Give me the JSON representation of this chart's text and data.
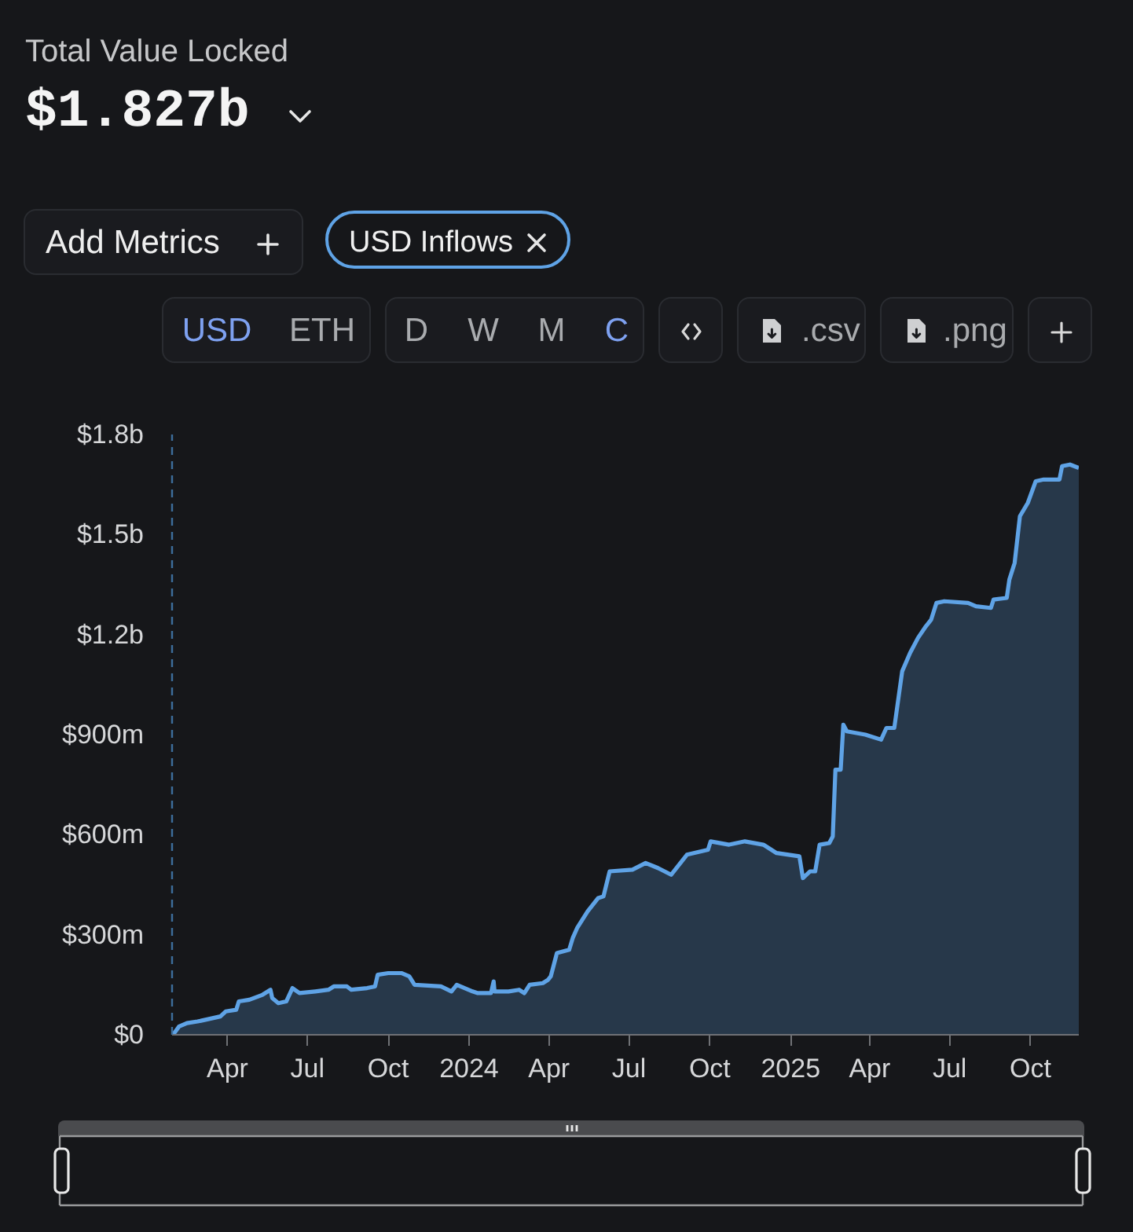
{
  "chart_data": {
    "type": "area",
    "title": "Total Value Locked",
    "subtitle": "$1.827b",
    "annotations": [
      "Add Metrics",
      "USD",
      "ETH",
      "D",
      "W",
      "M",
      "C",
      ".csv",
      ".png"
    ],
    "x": [
      "2023-01-29",
      "2023-02-05",
      "2023-02-14",
      "2023-02-26",
      "2023-03-07",
      "2023-03-24",
      "2023-03-30",
      "2023-04-11",
      "2023-04-14",
      "2023-04-26",
      "2023-05-11",
      "2023-05-20",
      "2023-05-22",
      "2023-05-29",
      "2023-06-07",
      "2023-06-14",
      "2023-06-22",
      "2023-07-10",
      "2023-07-25",
      "2023-07-31",
      "2023-08-15",
      "2023-08-20",
      "2023-09-07",
      "2023-09-16",
      "2023-09-19",
      "2023-10-01",
      "2023-10-16",
      "2023-10-25",
      "2023-10-31",
      "2023-11-30",
      "2023-12-12",
      "2023-12-18",
      "2023-12-27",
      "2024-01-05",
      "2024-01-11",
      "2024-01-26",
      "2024-01-29",
      "2024-01-30",
      "2024-02-15",
      "2024-02-27",
      "2024-03-04",
      "2024-03-10",
      "2024-03-25",
      "2024-03-31",
      "2024-04-03",
      "2024-04-10",
      "2024-04-24",
      "2024-04-28",
      "2024-05-03",
      "2024-05-15",
      "2024-05-27",
      "2024-06-02",
      "2024-06-09",
      "2024-07-05",
      "2024-07-20",
      "2024-08-03",
      "2024-08-18",
      "2024-09-05",
      "2024-09-29",
      "2024-10-02",
      "2024-10-23",
      "2024-11-10",
      "2024-12-01",
      "2024-12-16",
      "2025-01-11",
      "2025-01-15",
      "2025-01-23",
      "2025-01-29",
      "2025-02-03",
      "2025-02-14",
      "2025-02-18",
      "2025-02-21",
      "2025-02-27",
      "2025-03-02",
      "2025-03-06",
      "2025-03-27",
      "2025-04-14",
      "2025-04-20",
      "2025-04-29",
      "2025-05-08",
      "2025-05-17",
      "2025-05-26",
      "2025-06-04",
      "2025-06-10",
      "2025-06-16",
      "2025-06-25",
      "2025-07-22",
      "2025-07-31",
      "2025-08-17",
      "2025-08-20",
      "2025-09-04",
      "2025-09-07",
      "2025-09-13",
      "2025-09-19",
      "2025-09-28",
      "2025-10-07",
      "2025-10-16",
      "2025-11-03",
      "2025-11-06",
      "2025-11-15",
      "2025-11-25"
    ],
    "series": [
      {
        "name": "USD Inflows",
        "color": "#5fa3e6",
        "values": [
          0,
          25000000,
          35000000,
          40000000,
          45000000,
          55000000,
          70000000,
          75000000,
          100000000,
          105000000,
          120000000,
          135000000,
          110000000,
          95000000,
          100000000,
          140000000,
          125000000,
          130000000,
          135000000,
          145000000,
          145000000,
          135000000,
          140000000,
          145000000,
          180000000,
          185000000,
          185000000,
          175000000,
          150000000,
          145000000,
          130000000,
          150000000,
          140000000,
          130000000,
          125000000,
          125000000,
          160000000,
          130000000,
          130000000,
          135000000,
          125000000,
          150000000,
          155000000,
          165000000,
          175000000,
          245000000,
          255000000,
          290000000,
          320000000,
          370000000,
          410000000,
          415000000,
          490000000,
          495000000,
          515000000,
          500000000,
          480000000,
          540000000,
          555000000,
          580000000,
          570000000,
          580000000,
          570000000,
          545000000,
          535000000,
          470000000,
          490000000,
          490000000,
          570000000,
          575000000,
          595000000,
          795000000,
          795000000,
          930000000,
          910000000,
          900000000,
          885000000,
          920000000,
          920000000,
          1090000000,
          1145000000,
          1190000000,
          1225000000,
          1245000000,
          1295000000,
          1300000000,
          1295000000,
          1285000000,
          1280000000,
          1305000000,
          1310000000,
          1365000000,
          1415000000,
          1555000000,
          1595000000,
          1660000000,
          1665000000,
          1665000000,
          1705000000,
          1710000000,
          1700000000
        ]
      }
    ],
    "xlim": [
      "2023-01-28",
      "2025-11-25"
    ],
    "xticks": [
      {
        "value": "2023-04-01",
        "label": "Apr"
      },
      {
        "value": "2023-07-01",
        "label": "Jul"
      },
      {
        "value": "2023-10-01",
        "label": "Oct"
      },
      {
        "value": "2024-01-01",
        "label": "2024"
      },
      {
        "value": "2024-04-01",
        "label": "Apr"
      },
      {
        "value": "2024-07-01",
        "label": "Jul"
      },
      {
        "value": "2024-10-01",
        "label": "Oct"
      },
      {
        "value": "2025-01-01",
        "label": "2025"
      },
      {
        "value": "2025-04-01",
        "label": "Apr"
      },
      {
        "value": "2025-07-01",
        "label": "Jul"
      },
      {
        "value": "2025-10-01",
        "label": "Oct"
      }
    ],
    "ylim": [
      0,
      1800000000
    ],
    "yticks": [
      {
        "value": 0,
        "label": "$0"
      },
      {
        "value": 300000000,
        "label": "$300m"
      },
      {
        "value": 600000000,
        "label": "$600m"
      },
      {
        "value": 900000000,
        "label": "$900m"
      },
      {
        "value": 1200000000,
        "label": "$1.2b"
      },
      {
        "value": 1500000000,
        "label": "$1.5b"
      },
      {
        "value": 1800000000,
        "label": "$1.8b"
      }
    ],
    "grid": false,
    "legend": "top left"
  }
}
